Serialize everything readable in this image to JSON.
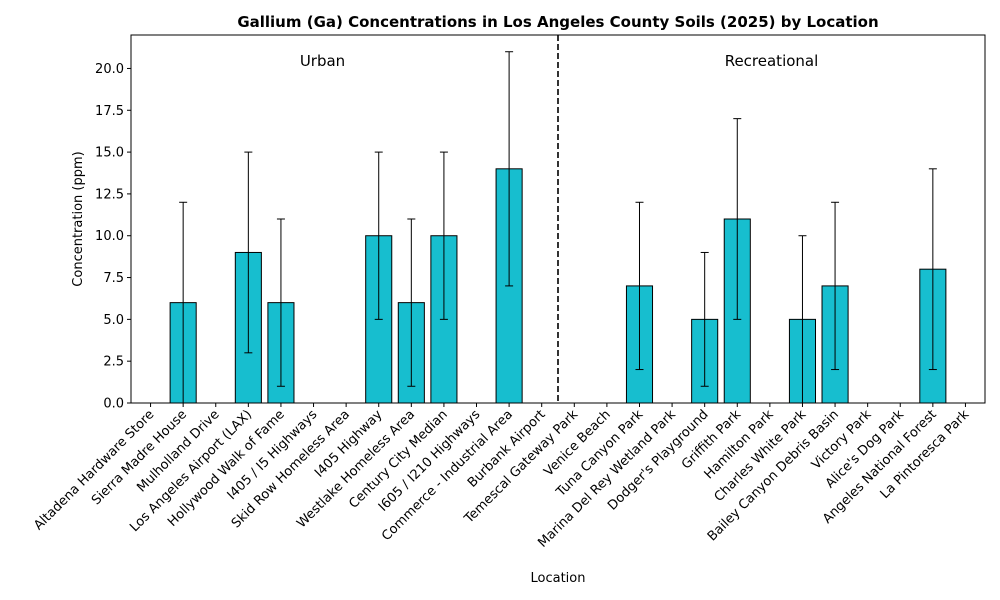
{
  "chart_data": {
    "type": "bar",
    "title": "Gallium (Ga) Concentrations in Los Angeles County Soils (2025) by Location",
    "xlabel": "Location",
    "ylabel": "Concentration (ppm)",
    "ylim": [
      0,
      22
    ],
    "yticks": [
      0,
      2.5,
      5,
      7.5,
      10,
      12.5,
      15,
      17.5,
      20
    ],
    "ytick_labels": [
      "0.0",
      "2.5",
      "5.0",
      "7.5",
      "10.0",
      "12.5",
      "15.0",
      "17.5",
      "20.0"
    ],
    "grid": false,
    "bar_color": "#17becf",
    "bar_edge_color": "#000000",
    "groups": [
      {
        "label": "Urban"
      },
      {
        "label": "Recreational"
      }
    ],
    "categories": [
      "Altadena Hardware Store",
      "Sierra Madre House",
      "Mulholland Drive",
      "Los Angeles Airport (LAX)",
      "Hollywood Walk of Fame",
      "I405 / I5 Highways",
      "Skid Row Homeless Area",
      "I405 Highway",
      "Westlake Homeless Area",
      "Century City Median",
      "I605 / I210 Highways",
      "Commerce - Industrial Area",
      "Burbank Airport",
      "Temescal Gateway Park",
      "Venice Beach",
      "Tuna Canyon Park",
      "Marina Del Rey Wetland Park",
      "Dodger's Playground",
      "Griffith Park",
      "Hamilton Park",
      "Charles White Park",
      "Bailey Canyon Debris Basin",
      "Victory Park",
      "Alice's Dog Park",
      "Angeles National Forest",
      "La Pintoresca Park"
    ],
    "values": [
      null,
      6,
      null,
      9,
      6,
      null,
      null,
      10,
      6,
      10,
      null,
      14,
      null,
      null,
      null,
      7,
      null,
      5,
      11,
      null,
      5,
      7,
      null,
      null,
      8,
      null
    ],
    "error_low": [
      null,
      0,
      null,
      3,
      1,
      null,
      null,
      5,
      1,
      5,
      null,
      7,
      null,
      null,
      null,
      2,
      null,
      1,
      5,
      null,
      0,
      2,
      null,
      null,
      2,
      null
    ],
    "error_high": [
      null,
      12,
      null,
      15,
      11,
      null,
      null,
      15,
      11,
      15,
      null,
      21,
      null,
      null,
      null,
      12,
      null,
      9,
      17,
      null,
      10,
      12,
      null,
      null,
      14,
      null
    ],
    "divider_after_index": 12
  }
}
